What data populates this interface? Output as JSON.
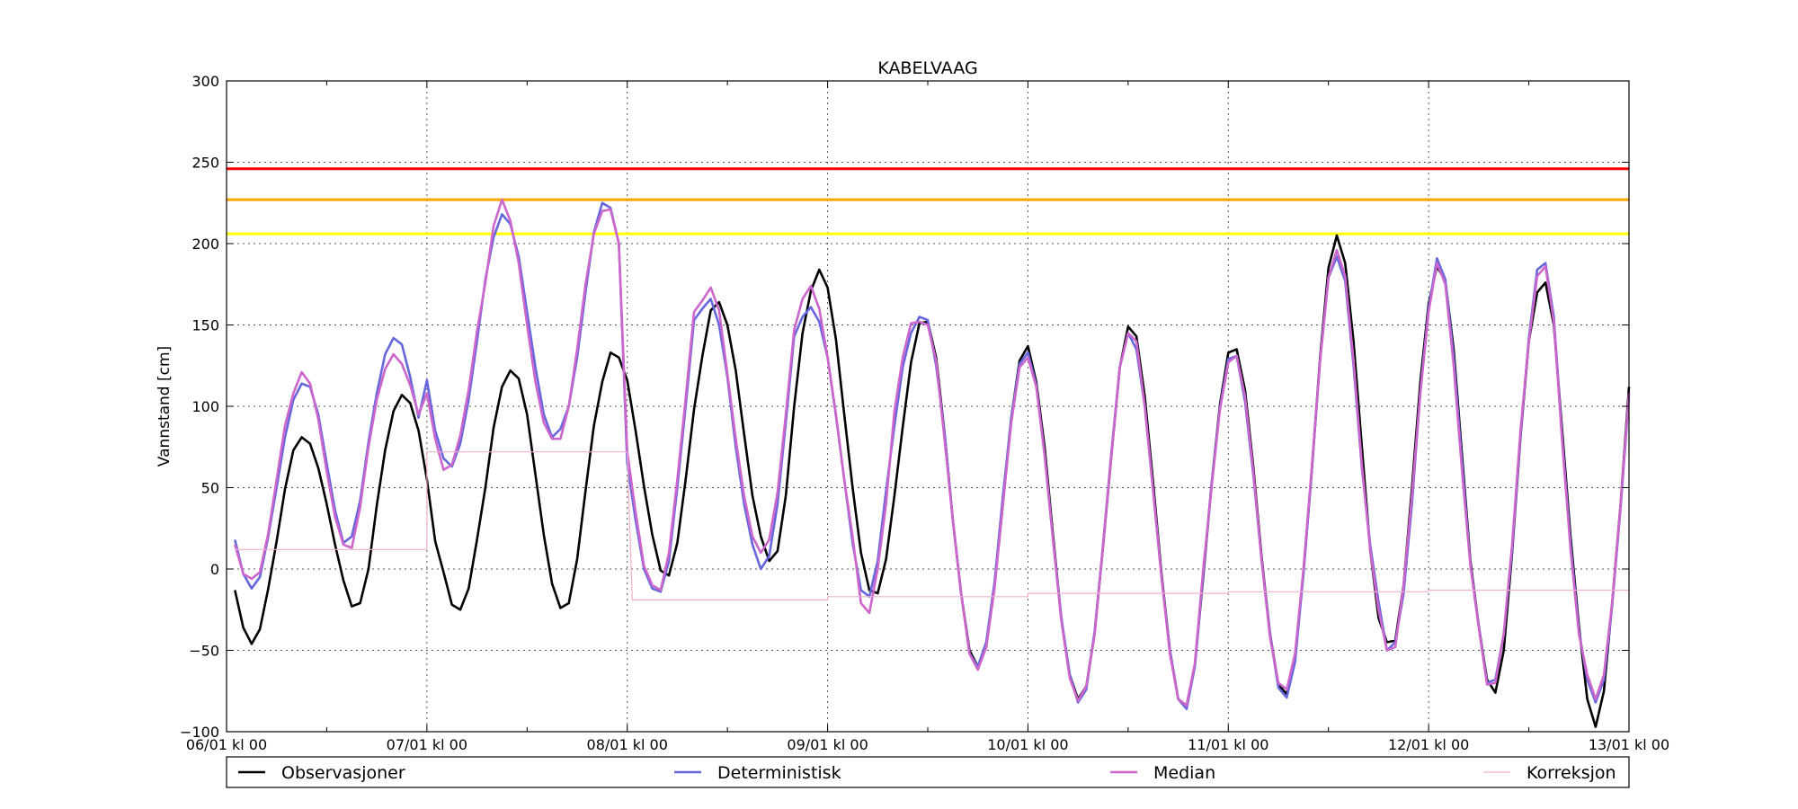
{
  "chart_data": {
    "type": "line",
    "title": "KABELVAAG",
    "xlabel": "",
    "ylabel": "Vannstand [cm]",
    "ylim": [
      -100,
      300
    ],
    "yticks": [
      -100,
      -50,
      0,
      50,
      100,
      150,
      200,
      250,
      300
    ],
    "yticks_labels": [
      "−100",
      "−50",
      "0",
      "50",
      "100",
      "150",
      "200",
      "250",
      "300"
    ],
    "xlim": [
      0,
      168
    ],
    "xticks": [
      0,
      24,
      48,
      72,
      96,
      120,
      144,
      168
    ],
    "xticks_labels": [
      "06/01 kl 00",
      "07/01 kl 00",
      "08/01 kl 00",
      "09/01 kl 00",
      "10/01 kl 00",
      "11/01 kl 00",
      "12/01 kl 00",
      "13/01 kl 00"
    ],
    "minor_xticks": [
      12,
      36,
      60,
      84,
      108,
      132,
      156
    ],
    "grid": true,
    "legend_position": "bottom",
    "thresholds": [
      {
        "value": 246,
        "color": "#ff0000"
      },
      {
        "value": 227,
        "color": "#ffa500"
      },
      {
        "value": 206,
        "color": "#ffff00"
      }
    ],
    "series": [
      {
        "name": "Observasjoner",
        "color": "#000000",
        "x": [
          1,
          2,
          3,
          4,
          5,
          6,
          7,
          8,
          9,
          10,
          11,
          12,
          13,
          14,
          15,
          16,
          17,
          18,
          19,
          20,
          21,
          22,
          23,
          24,
          25,
          26,
          27,
          28,
          29,
          30,
          31,
          32,
          33,
          34,
          35,
          36,
          37,
          38,
          39,
          40,
          41,
          42,
          43,
          44,
          45,
          46,
          47,
          48,
          49,
          50,
          51,
          52,
          53,
          54,
          55,
          56,
          57,
          58,
          59,
          60,
          61,
          62,
          63,
          64,
          65,
          66,
          67,
          68,
          69,
          70,
          71,
          72,
          73,
          74,
          75,
          76,
          77,
          78,
          79,
          80,
          81,
          82,
          83,
          84,
          85,
          86,
          87,
          88,
          89,
          90,
          91,
          92,
          93,
          94,
          95,
          96,
          97,
          98,
          99,
          100,
          101,
          102,
          103,
          104,
          105,
          106,
          107,
          108,
          109,
          110,
          111,
          112,
          113,
          114,
          115,
          116,
          117,
          118,
          119,
          120,
          121,
          122,
          123,
          124,
          125,
          126,
          127,
          128,
          129,
          130,
          131,
          132,
          133,
          134,
          135,
          136,
          137,
          138,
          139,
          140,
          141,
          142,
          143,
          144,
          145,
          146,
          147,
          148,
          149,
          150,
          151,
          152,
          153,
          154,
          155,
          156,
          157,
          158,
          159,
          160,
          161,
          162,
          163,
          164,
          165,
          166,
          167,
          168
        ],
        "y": [
          -13,
          -36,
          -46,
          -37,
          -12,
          17,
          49,
          73,
          81,
          77,
          62,
          40,
          15,
          -7,
          -23,
          -21,
          0,
          39,
          73,
          97,
          107,
          102,
          85,
          55,
          17,
          -2,
          -22,
          -25,
          -12,
          18,
          50,
          87,
          112,
          122,
          117,
          95,
          58,
          21,
          -9,
          -24,
          -21,
          6,
          48,
          88,
          115,
          133,
          130,
          116,
          85,
          51,
          21,
          -1,
          -4,
          16,
          55,
          98,
          131,
          159,
          164,
          150,
          122,
          83,
          45,
          20,
          5,
          11,
          45,
          100,
          145,
          171,
          184,
          173,
          141,
          95,
          50,
          10,
          -13,
          -15,
          6,
          45,
          87,
          127,
          151,
          152,
          130,
          84,
          30,
          -15,
          -50,
          -60,
          -48,
          -10,
          40,
          93,
          128,
          137,
          115,
          75,
          21,
          -31,
          -65,
          -80,
          -72,
          -39,
          14,
          70,
          124,
          149,
          143,
          106,
          53,
          -3,
          -50,
          -80,
          -84,
          -59,
          -5,
          52,
          101,
          133,
          135,
          110,
          63,
          7,
          -40,
          -71,
          -77,
          -53,
          -2,
          60,
          130,
          185,
          205,
          188,
          140,
          75,
          12,
          -30,
          -45,
          -44,
          -10,
          50,
          115,
          163,
          186,
          177,
          135,
          70,
          5,
          -35,
          -68,
          -76,
          -50,
          10,
          81,
          140,
          170,
          176,
          150,
          85,
          20,
          -35,
          -80,
          -97,
          -75,
          -20,
          40,
          112
        ]
      },
      {
        "name": "Deterministisk",
        "color": "#6666dd",
        "x": [
          1,
          2,
          3,
          4,
          5,
          6,
          7,
          8,
          9,
          10,
          11,
          12,
          13,
          14,
          15,
          16,
          17,
          18,
          19,
          20,
          21,
          22,
          23,
          24,
          25,
          26,
          27,
          28,
          29,
          30,
          31,
          32,
          33,
          34,
          35,
          36,
          37,
          38,
          39,
          40,
          41,
          42,
          43,
          44,
          45,
          46,
          47,
          48,
          49,
          50,
          51,
          52,
          53,
          54,
          55,
          56,
          57,
          58,
          59,
          60,
          61,
          62,
          63,
          64,
          65,
          66,
          67,
          68,
          69,
          70,
          71,
          72,
          73,
          74,
          75,
          76,
          77,
          78,
          79,
          80,
          81,
          82,
          83,
          84,
          85,
          86,
          87,
          88,
          89,
          90,
          91,
          92,
          93,
          94,
          95,
          96,
          97,
          98,
          99,
          100,
          101,
          102,
          103,
          104,
          105,
          106,
          107,
          108,
          109,
          110,
          111,
          112,
          113,
          114,
          115,
          116,
          117,
          118,
          119,
          120,
          121,
          122,
          123,
          124,
          125,
          126,
          127,
          128,
          129,
          130,
          131,
          132,
          133,
          134,
          135,
          136,
          137,
          138,
          139,
          140,
          141,
          142,
          143,
          144,
          145,
          146,
          147,
          148,
          149,
          150,
          151,
          152,
          153,
          154,
          155,
          156,
          157,
          158,
          159,
          160,
          161,
          162,
          163,
          164,
          165,
          166,
          167,
          168
        ],
        "y": [
          18,
          -3,
          -12,
          -5,
          20,
          50,
          81,
          104,
          114,
          112,
          95,
          65,
          36,
          16,
          20,
          42,
          78,
          108,
          132,
          142,
          138,
          118,
          93,
          116,
          85,
          68,
          63,
          77,
          104,
          140,
          178,
          204,
          218,
          212,
          192,
          158,
          124,
          95,
          81,
          86,
          100,
          130,
          170,
          207,
          225,
          222,
          200,
          65,
          30,
          0,
          -12,
          -14,
          5,
          50,
          100,
          153,
          160,
          166,
          150,
          118,
          75,
          40,
          15,
          0,
          8,
          40,
          90,
          143,
          155,
          161,
          152,
          130,
          94,
          55,
          16,
          -13,
          -17,
          5,
          48,
          88,
          124,
          145,
          155,
          153,
          125,
          84,
          30,
          -15,
          -52,
          -60,
          -45,
          -8,
          45,
          93,
          126,
          133,
          113,
          70,
          18,
          -30,
          -65,
          -82,
          -74,
          -38,
          15,
          72,
          124,
          145,
          135,
          100,
          48,
          -5,
          -50,
          -80,
          -86,
          -60,
          -3,
          52,
          99,
          129,
          131,
          103,
          58,
          5,
          -40,
          -73,
          -79,
          -57,
          -3,
          60,
          128,
          179,
          192,
          177,
          125,
          62,
          15,
          -20,
          -50,
          -45,
          -15,
          40,
          109,
          160,
          191,
          178,
          130,
          65,
          3,
          -35,
          -70,
          -68,
          -40,
          12,
          82,
          142,
          184,
          188,
          155,
          80,
          15,
          -38,
          -68,
          -82,
          -68,
          -22,
          38,
          106
        ]
      },
      {
        "name": "Median",
        "color": "#cc66cc",
        "x": [
          1,
          2,
          3,
          4,
          5,
          6,
          7,
          8,
          9,
          10,
          11,
          12,
          13,
          14,
          15,
          16,
          17,
          18,
          19,
          20,
          21,
          22,
          23,
          24,
          25,
          26,
          27,
          28,
          29,
          30,
          31,
          32,
          33,
          34,
          35,
          36,
          37,
          38,
          39,
          40,
          41,
          42,
          43,
          44,
          45,
          46,
          47,
          48,
          49,
          50,
          51,
          52,
          53,
          54,
          55,
          56,
          57,
          58,
          59,
          60,
          61,
          62,
          63,
          64,
          65,
          66,
          67,
          68,
          69,
          70,
          71,
          72,
          73,
          74,
          75,
          76,
          77,
          78,
          79,
          80,
          81,
          82,
          83,
          84,
          85,
          86,
          87,
          88,
          89,
          90,
          91,
          92,
          93,
          94,
          95,
          96,
          97,
          98,
          99,
          100,
          101,
          102,
          103,
          104,
          105,
          106,
          107,
          108,
          109,
          110,
          111,
          112,
          113,
          114,
          115,
          116,
          117,
          118,
          119,
          120,
          121,
          122,
          123,
          124,
          125,
          126,
          127,
          128,
          129,
          130,
          131,
          132,
          133,
          134,
          135,
          136,
          137,
          138,
          139,
          140,
          141,
          142,
          143,
          144,
          145,
          146,
          147,
          148,
          149,
          150,
          151,
          152,
          153,
          154,
          155,
          156,
          157,
          158,
          159,
          160,
          161,
          162,
          163,
          164,
          165,
          166,
          167,
          168
        ],
        "y": [
          15,
          -3,
          -6,
          -2,
          22,
          55,
          88,
          108,
          121,
          114,
          92,
          60,
          32,
          15,
          13,
          38,
          75,
          104,
          123,
          132,
          126,
          113,
          95,
          108,
          80,
          61,
          64,
          82,
          110,
          146,
          176,
          211,
          227,
          214,
          188,
          150,
          115,
          90,
          80,
          80,
          100,
          135,
          175,
          206,
          220,
          221,
          200,
          72,
          35,
          2,
          -10,
          -13,
          10,
          55,
          105,
          158,
          165,
          173,
          159,
          120,
          80,
          45,
          20,
          10,
          18,
          47,
          95,
          147,
          166,
          174,
          160,
          130,
          95,
          55,
          20,
          -21,
          -27,
          0,
          40,
          97,
          130,
          151,
          152,
          150,
          128,
          80,
          30,
          -15,
          -52,
          -62,
          -48,
          -12,
          40,
          90,
          124,
          130,
          112,
          70,
          18,
          -32,
          -67,
          -81,
          -72,
          -40,
          15,
          70,
          124,
          145,
          140,
          100,
          48,
          -5,
          -52,
          -80,
          -84,
          -58,
          0,
          50,
          98,
          127,
          131,
          106,
          60,
          5,
          -42,
          -70,
          -74,
          -52,
          0,
          62,
          128,
          179,
          196,
          180,
          128,
          64,
          12,
          -25,
          -50,
          -48,
          -10,
          45,
          108,
          158,
          188,
          175,
          125,
          60,
          2,
          -36,
          -71,
          -70,
          -40,
          15,
          85,
          140,
          180,
          186,
          152,
          78,
          12,
          -40,
          -65,
          -80,
          -65,
          -20,
          40,
          108
        ]
      },
      {
        "name": "Korreksjon",
        "color": "#f0b0cc",
        "x": [
          1,
          24,
          24,
          48,
          48.6,
          72,
          72,
          96,
          96,
          120,
          120,
          144,
          144,
          168
        ],
        "y": [
          12,
          12,
          72,
          72,
          -19,
          -19,
          -17,
          -17,
          -15,
          -15,
          -14,
          -14,
          -13,
          -13
        ]
      }
    ]
  }
}
